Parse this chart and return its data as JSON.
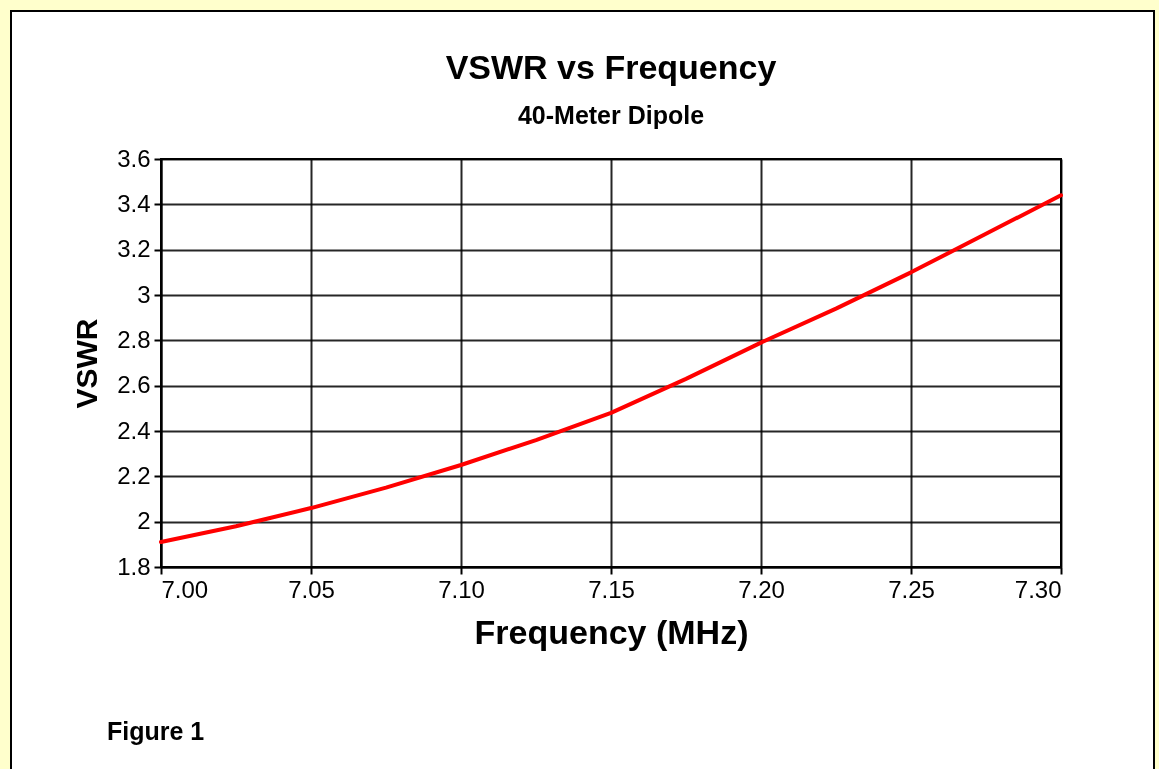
{
  "chart_data": {
    "type": "line",
    "title": "VSWR vs Frequency",
    "subtitle": "40-Meter Dipole",
    "xlabel": "Frequency (MHz)",
    "ylabel": "VSWR",
    "annotations": [
      "Figure 1"
    ],
    "x": [
      7.0,
      7.025,
      7.05,
      7.075,
      7.1,
      7.125,
      7.15,
      7.175,
      7.2,
      7.225,
      7.25,
      7.275,
      7.3
    ],
    "series": [
      {
        "color": "#ff0000",
        "values": [
          1.91,
          1.98,
          2.06,
          2.15,
          2.25,
          2.36,
          2.48,
          2.63,
          2.79,
          2.94,
          3.1,
          3.27,
          3.44
        ]
      }
    ],
    "xlim": [
      7.0,
      7.3
    ],
    "xticks": [
      {
        "value": 7.0,
        "label": "7.00"
      },
      {
        "value": 7.05,
        "label": "7.05"
      },
      {
        "value": 7.1,
        "label": "7.10"
      },
      {
        "value": 7.15,
        "label": "7.15"
      },
      {
        "value": 7.2,
        "label": "7.20"
      },
      {
        "value": 7.25,
        "label": "7.25"
      },
      {
        "value": 7.3,
        "label": "7.30"
      }
    ],
    "ylim": [
      1.8,
      3.6
    ],
    "yticks": [
      1.8,
      2,
      2.2,
      2.4,
      2.6,
      2.8,
      3,
      3.2,
      3.4,
      3.6
    ],
    "grid": true,
    "marker": "none",
    "line_style": "solid"
  }
}
